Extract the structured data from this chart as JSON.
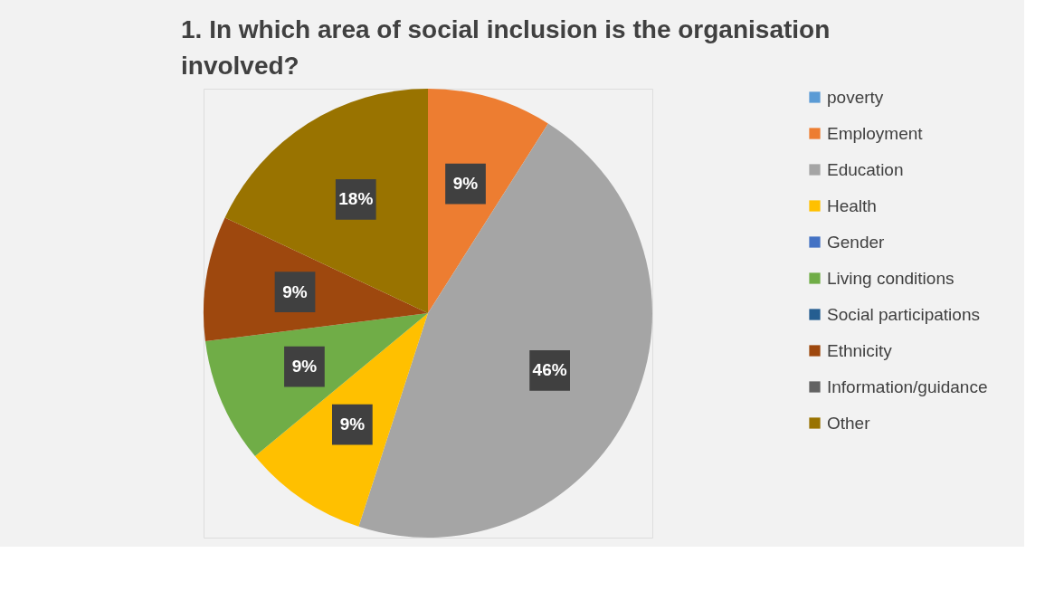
{
  "chart_data": {
    "type": "pie",
    "title": "1. In which area of social inclusion is the organisation involved?",
    "categories": [
      "poverty",
      "Employment",
      "Education",
      "Health",
      "Gender",
      "Living conditions",
      "Social participations",
      "Ethnicity",
      "Information/guidance",
      "Other"
    ],
    "values": [
      0,
      9,
      46,
      9,
      0,
      9,
      0,
      9,
      0,
      18
    ],
    "colors": [
      "#5b9bd5",
      "#ed7d31",
      "#a5a5a5",
      "#ffc000",
      "#4472c4",
      "#70ad47",
      "#255e91",
      "#9e480e",
      "#636363",
      "#997300"
    ],
    "value_labels": [
      null,
      "9%",
      "46%",
      "9%",
      null,
      "9%",
      null,
      "9%",
      null,
      "18%"
    ],
    "legend": "right"
  }
}
